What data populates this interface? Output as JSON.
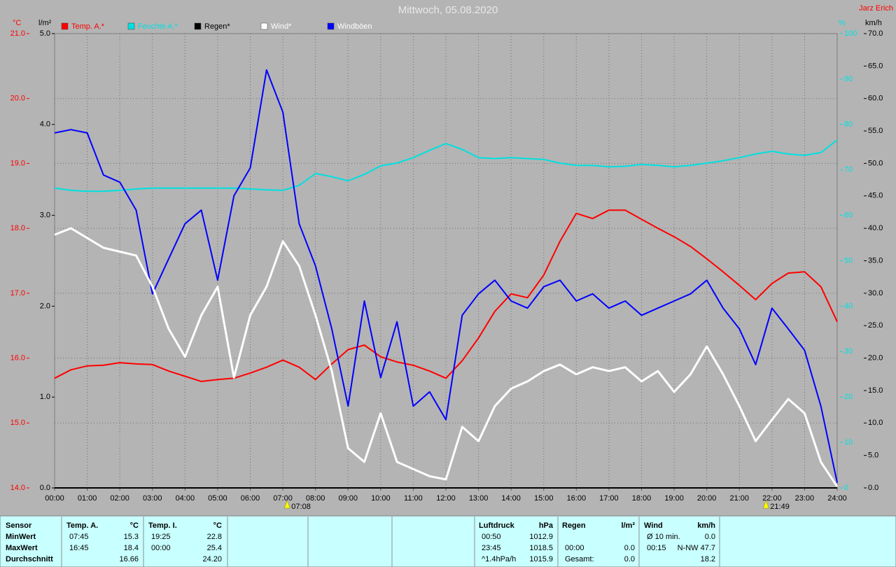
{
  "chart_data": {
    "type": "line",
    "title": "Mittwoch, 05.08.2020",
    "author": "Jarz Erich",
    "ylabel": "°C",
    "y2label": "l/m²",
    "y3label": "%",
    "y4label": "km/h",
    "ylim": [
      14,
      21
    ],
    "yticks": [
      {
        "value": 14,
        "label": "14.0"
      },
      {
        "value": 15,
        "label": "15.0"
      },
      {
        "value": 16,
        "label": "16.0"
      },
      {
        "value": 17,
        "label": "17.0"
      },
      {
        "value": 18,
        "label": "18.0"
      },
      {
        "value": 19,
        "label": "19.0"
      },
      {
        "value": 20,
        "label": "20.0"
      },
      {
        "value": 21,
        "label": "21.0"
      }
    ],
    "y2lim": [
      0,
      5
    ],
    "y2ticks": [
      {
        "value": 0,
        "label": "0.0"
      },
      {
        "value": 1,
        "label": "1.0"
      },
      {
        "value": 2,
        "label": "2.0"
      },
      {
        "value": 3,
        "label": "3.0"
      },
      {
        "value": 4,
        "label": "4.0"
      },
      {
        "value": 5,
        "label": "5.0"
      }
    ],
    "y3lim": [
      0,
      100
    ],
    "y3ticks": [
      0,
      10,
      20,
      30,
      40,
      50,
      60,
      70,
      80,
      90,
      100
    ],
    "y4lim": [
      0,
      70
    ],
    "y4ticks": [
      {
        "value": 0,
        "label": "0.0"
      },
      {
        "value": 5,
        "label": "5.0"
      },
      {
        "value": 10,
        "label": "10.0"
      },
      {
        "value": 15,
        "label": "15.0"
      },
      {
        "value": 20,
        "label": "20.0"
      },
      {
        "value": 25,
        "label": "25.0"
      },
      {
        "value": 30,
        "label": "30.0"
      },
      {
        "value": 35,
        "label": "35.0"
      },
      {
        "value": 40,
        "label": "40.0"
      },
      {
        "value": 45,
        "label": "45.0"
      },
      {
        "value": 50,
        "label": "50.0"
      },
      {
        "value": 55,
        "label": "55.0"
      },
      {
        "value": 60,
        "label": "60.0"
      },
      {
        "value": 65,
        "label": "65.0"
      },
      {
        "value": 70,
        "label": "70.0"
      }
    ],
    "xlim": [
      0,
      24
    ],
    "xticks": [
      {
        "value": 0,
        "label": "00:00"
      },
      {
        "value": 1,
        "label": "01:00"
      },
      {
        "value": 2,
        "label": "02:00"
      },
      {
        "value": 3,
        "label": "03:00"
      },
      {
        "value": 4,
        "label": "04:00"
      },
      {
        "value": 5,
        "label": "05:00"
      },
      {
        "value": 6,
        "label": "06:00"
      },
      {
        "value": 7,
        "label": "07:00"
      },
      {
        "value": 8,
        "label": "08:00"
      },
      {
        "value": 9,
        "label": "09:00"
      },
      {
        "value": 10,
        "label": "10:00"
      },
      {
        "value": 11,
        "label": "11:00"
      },
      {
        "value": 12,
        "label": "12:00"
      },
      {
        "value": 13,
        "label": "13:00"
      },
      {
        "value": 14,
        "label": "14:00"
      },
      {
        "value": 15,
        "label": "15:00"
      },
      {
        "value": 16,
        "label": "16:00"
      },
      {
        "value": 17,
        "label": "17:00"
      },
      {
        "value": 18,
        "label": "18:00"
      },
      {
        "value": 19,
        "label": "19:00"
      },
      {
        "value": 20,
        "label": "20:00"
      },
      {
        "value": 21,
        "label": "21:00"
      },
      {
        "value": 22,
        "label": "22:00"
      },
      {
        "value": 23,
        "label": "23:00"
      },
      {
        "value": 24,
        "label": "24:00"
      }
    ],
    "grid": true,
    "x": [
      0,
      0.5,
      1,
      1.5,
      2,
      2.5,
      3,
      3.5,
      4,
      4.5,
      5,
      5.5,
      6,
      6.5,
      7,
      7.5,
      8,
      8.5,
      9,
      9.5,
      10,
      10.5,
      11,
      11.5,
      12,
      12.5,
      13,
      13.5,
      14,
      14.5,
      15,
      15.5,
      16,
      16.5,
      17,
      17.5,
      18,
      18.5,
      19,
      19.5,
      20,
      20.5,
      21,
      21.5,
      22,
      22.5,
      23,
      23.5,
      24
    ],
    "series": [
      {
        "name": "Temp. A.*",
        "color": "#ff0000",
        "text_color": "#ff0000",
        "axis": "y",
        "values": [
          15.69,
          15.82,
          15.88,
          15.89,
          15.93,
          15.91,
          15.9,
          15.8,
          15.72,
          15.64,
          15.67,
          15.69,
          15.77,
          15.86,
          15.97,
          15.86,
          15.67,
          15.91,
          16.13,
          16.2,
          16.02,
          15.94,
          15.89,
          15.8,
          15.69,
          15.96,
          16.31,
          16.72,
          16.99,
          16.93,
          17.28,
          17.8,
          18.23,
          18.15,
          18.28,
          18.28,
          18.14,
          18.0,
          17.87,
          17.72,
          17.53,
          17.33,
          17.12,
          16.9,
          17.15,
          17.31,
          17.33,
          17.1,
          16.56
        ]
      },
      {
        "name": "Feuchte A.*",
        "color": "#00e0e0",
        "text_color": "#00e0e0",
        "axis": "y3",
        "values": [
          66,
          65.5,
          65.3,
          65.3,
          65.5,
          65.8,
          66,
          66,
          66,
          66,
          66,
          66,
          65.8,
          65.6,
          65.5,
          66.6,
          69.2,
          68.5,
          67.6,
          69,
          70.9,
          71.5,
          72.7,
          74.3,
          75.8,
          74.5,
          72.7,
          72.5,
          72.7,
          72.5,
          72.3,
          71.5,
          71,
          71,
          70.7,
          70.8,
          71.2,
          71,
          70.7,
          71,
          71.5,
          72,
          72.7,
          73.5,
          74.1,
          73.5,
          73.2,
          73.8,
          76.6
        ]
      },
      {
        "name": "Regen*",
        "color": "#000000",
        "text_color": "#000000",
        "axis": "y2",
        "values": [
          0,
          0,
          0,
          0,
          0,
          0,
          0,
          0,
          0,
          0,
          0,
          0,
          0,
          0,
          0,
          0,
          0,
          0,
          0,
          0,
          0,
          0,
          0,
          0,
          0,
          0,
          0,
          0,
          0,
          0,
          0,
          0,
          0,
          0,
          0,
          0,
          0,
          0,
          0,
          0,
          0,
          0,
          0,
          0,
          0,
          0,
          0,
          0,
          0
        ]
      },
      {
        "name": "Wind*",
        "color": "#ffffff",
        "text_color": "#ffffff",
        "axis": "y4",
        "values": [
          39,
          40,
          38.5,
          37,
          36.4,
          35.8,
          31,
          24.5,
          20.2,
          26.6,
          31,
          17,
          26.6,
          31,
          38,
          34.2,
          26.6,
          18,
          6.1,
          4,
          11.5,
          4,
          2.9,
          1.8,
          1.3,
          9.4,
          7.2,
          12.6,
          15.3,
          16.4,
          18,
          19,
          17.5,
          18.6,
          18,
          18.6,
          16.4,
          18,
          14.8,
          17.5,
          21.8,
          17.5,
          12.6,
          7.2,
          10.5,
          13.7,
          11.5,
          4,
          0.2
        ]
      },
      {
        "name": "Windböen",
        "color": "#0000ff",
        "text_color": "#ffffff",
        "axis": "y4",
        "values": [
          54.7,
          55.2,
          54.7,
          48.2,
          47.1,
          42.8,
          29.9,
          35.3,
          40.7,
          42.8,
          32,
          45,
          49.3,
          64.4,
          57.9,
          40.7,
          34.2,
          24.5,
          12.6,
          28.8,
          17,
          25.6,
          12.6,
          14.8,
          10.5,
          26.6,
          29.9,
          32,
          28.8,
          27.7,
          31,
          32,
          28.8,
          29.9,
          27.7,
          28.8,
          26.6,
          27.7,
          28.8,
          29.9,
          32,
          27.7,
          24.5,
          19,
          27.7,
          24.5,
          21.2,
          12.6,
          0.8
        ]
      }
    ],
    "annotations": [
      {
        "x": 7.1333,
        "label": "07:08"
      },
      {
        "x": 21.8167,
        "label": "21:49"
      }
    ]
  },
  "table": {
    "blocks": [
      {
        "header": [
          "Sensor"
        ],
        "rows": [
          [
            "MinWert"
          ],
          [
            "MaxWert"
          ],
          [
            "Durchschnitt"
          ]
        ]
      },
      {
        "header": [
          "Temp. A.",
          "°C"
        ],
        "rows": [
          [
            "07:45",
            "15.3"
          ],
          [
            "16:45",
            "18.4"
          ],
          [
            null,
            "16.66"
          ]
        ]
      },
      {
        "header": [
          "Temp. I.",
          "°C"
        ],
        "rows": [
          [
            "19:25",
            "22.8"
          ],
          [
            "00:00",
            "25.4"
          ],
          [
            null,
            "24.20"
          ]
        ]
      },
      {
        "header": [
          "Luftdruck",
          "hPa"
        ],
        "rows": [
          [
            "00:50",
            "1012.9"
          ],
          [
            "23:45",
            "1018.5"
          ],
          [
            "^1.4hPa/h",
            "1015.9"
          ]
        ]
      },
      {
        "header": [
          "Regen",
          "l/m²"
        ],
        "rows": [
          [
            null,
            null
          ],
          [
            "00:00",
            "0.0"
          ],
          [
            "Gesamt:",
            "0.0"
          ]
        ]
      },
      {
        "header": [
          "Wind",
          "km/h"
        ],
        "rows": [
          [
            "Ø 10 min.",
            "0.0"
          ],
          [
            "00:15",
            "N-NW 47.7"
          ],
          [
            null,
            "18.2"
          ]
        ]
      }
    ]
  }
}
